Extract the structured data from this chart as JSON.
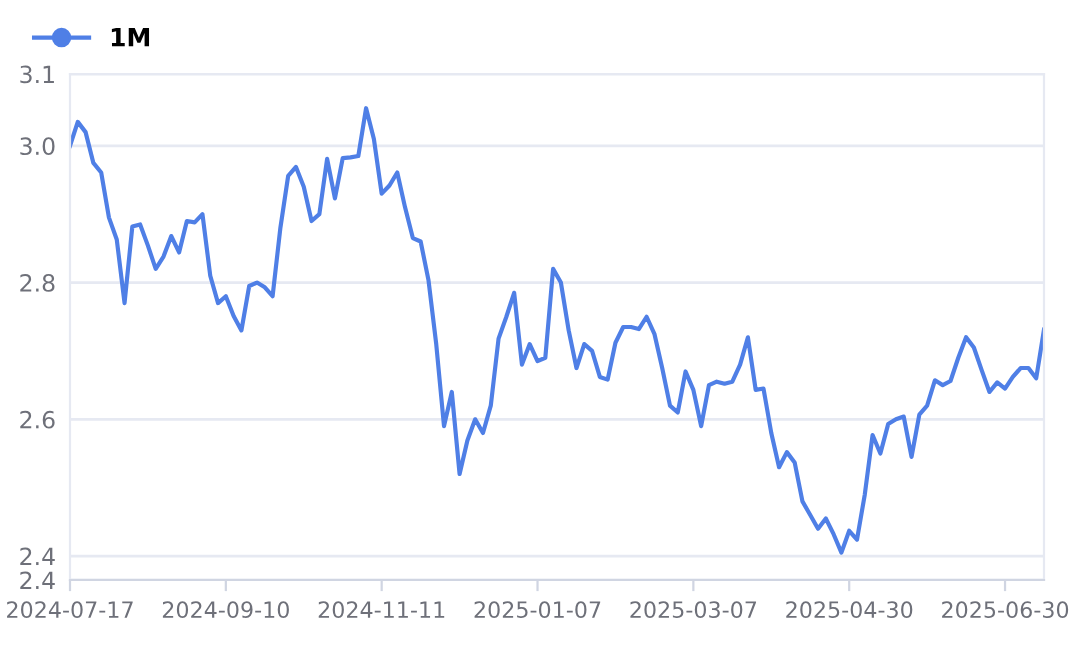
{
  "chart_data": {
    "type": "line",
    "categories": [
      "2024-07-17",
      null,
      null,
      null,
      null,
      null,
      null,
      null,
      null,
      null,
      null,
      null,
      null,
      null,
      null,
      null,
      null,
      null,
      null,
      null,
      "2024-09-10",
      null,
      null,
      null,
      null,
      null,
      null,
      null,
      null,
      null,
      null,
      null,
      null,
      null,
      null,
      null,
      null,
      null,
      null,
      null,
      "2024-11-11",
      null,
      null,
      null,
      null,
      null,
      null,
      null,
      null,
      null,
      null,
      null,
      null,
      null,
      null,
      null,
      null,
      null,
      null,
      null,
      "2025-01-07",
      null,
      null,
      null,
      null,
      null,
      null,
      null,
      null,
      null,
      null,
      null,
      null,
      null,
      null,
      null,
      null,
      null,
      null,
      null,
      "2025-03-07",
      null,
      null,
      null,
      null,
      null,
      null,
      null,
      null,
      null,
      null,
      null,
      null,
      null,
      null,
      null,
      null,
      null,
      null,
      null,
      "2025-04-30",
      null,
      null,
      null,
      null,
      null,
      null,
      null,
      null,
      null,
      null,
      null,
      null,
      null,
      null,
      null,
      null,
      null,
      null,
      null,
      "2025-06-30",
      null,
      null,
      null,
      null,
      null
    ],
    "series": [
      {
        "name": "1M",
        "color": "#4f7fe6",
        "values": [
          3.0,
          3.035,
          3.02,
          2.975,
          2.961,
          2.895,
          2.863,
          2.77,
          2.882,
          2.885,
          2.854,
          2.82,
          2.838,
          2.868,
          2.844,
          2.89,
          2.888,
          2.9,
          2.81,
          2.77,
          2.78,
          2.751,
          2.73,
          2.795,
          2.8,
          2.793,
          2.78,
          2.88,
          2.956,
          2.969,
          2.94,
          2.89,
          2.9,
          2.981,
          2.923,
          2.982,
          2.983,
          2.985,
          3.055,
          3.01,
          2.93,
          2.942,
          2.961,
          2.91,
          2.865,
          2.86,
          2.804,
          2.71,
          2.59,
          2.64,
          2.52,
          2.569,
          2.6,
          2.58,
          2.62,
          2.718,
          2.75,
          2.785,
          2.68,
          2.71,
          2.685,
          2.69,
          2.82,
          2.8,
          2.73,
          2.675,
          2.71,
          2.7,
          2.662,
          2.658,
          2.712,
          2.735,
          2.735,
          2.732,
          2.75,
          2.725,
          2.675,
          2.62,
          2.61,
          2.67,
          2.643,
          2.59,
          2.65,
          2.655,
          2.652,
          2.655,
          2.68,
          2.72,
          2.643,
          2.645,
          2.58,
          2.53,
          2.552,
          2.537,
          2.48,
          2.46,
          2.44,
          2.455,
          2.432,
          2.405,
          2.437,
          2.424,
          2.49,
          2.577,
          2.55,
          2.593,
          2.6,
          2.604,
          2.545,
          2.607,
          2.62,
          2.657,
          2.65,
          2.656,
          2.69,
          2.72,
          2.705,
          2.672,
          2.64,
          2.654,
          2.645,
          2.662,
          2.675,
          2.675,
          2.66,
          2.731
        ]
      }
    ],
    "ylim": [
      2.365,
      3.105
    ],
    "yticks": [
      {
        "value": 2.365,
        "label": "2.4"
      },
      2.4,
      2.6,
      2.8,
      {
        "value": 3.0,
        "label": "3.0"
      },
      {
        "value": 3.105,
        "label": "3.1"
      }
    ],
    "grid": "y",
    "legend": "top left",
    "line_style": "solid"
  }
}
